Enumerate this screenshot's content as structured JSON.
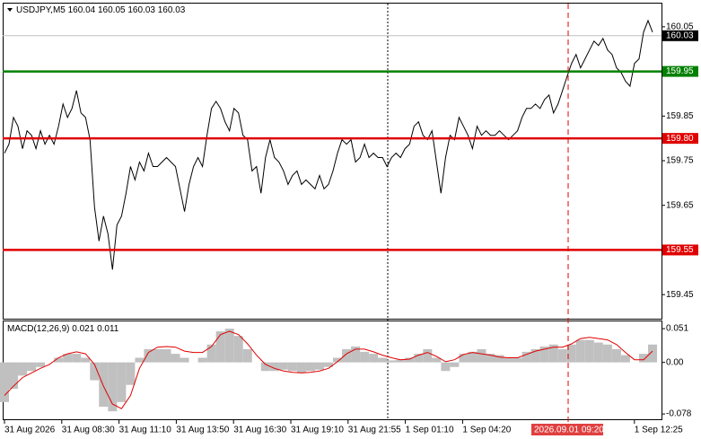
{
  "chart_data": [
    {
      "type": "line",
      "title": "USDJPY,M5",
      "ohlc": [
        160.04,
        160.05,
        160.03,
        160.03
      ],
      "color": "#000000",
      "values": [
        159.767,
        159.787,
        159.847,
        159.827,
        159.777,
        159.817,
        159.807,
        159.777,
        159.817,
        159.787,
        159.807,
        159.787,
        159.827,
        159.877,
        159.847,
        159.867,
        159.907,
        159.857,
        159.847,
        159.797,
        159.646,
        159.57,
        159.626,
        159.586,
        159.506,
        159.606,
        159.626,
        159.677,
        159.737,
        159.707,
        159.747,
        159.727,
        159.767,
        159.737,
        159.737,
        159.747,
        159.757,
        159.747,
        159.737,
        159.687,
        159.636,
        159.697,
        159.737,
        159.757,
        159.737,
        159.807,
        159.867,
        159.883,
        159.867,
        159.837,
        159.817,
        159.867,
        159.857,
        159.807,
        159.797,
        159.727,
        159.737,
        159.677,
        159.757,
        159.797,
        159.757,
        159.747,
        159.727,
        159.697,
        159.717,
        159.727,
        159.697,
        159.707,
        159.697,
        159.687,
        159.717,
        159.687,
        159.697,
        159.727,
        159.767,
        159.797,
        159.787,
        159.797,
        159.747,
        159.757,
        159.787,
        159.757,
        159.767,
        159.757,
        159.757,
        159.737,
        159.757,
        159.767,
        159.757,
        159.777,
        159.787,
        159.827,
        159.837,
        159.807,
        159.797,
        159.817,
        159.747,
        159.677,
        159.757,
        159.807,
        159.797,
        159.847,
        159.827,
        159.807,
        159.777,
        159.827,
        159.807,
        159.817,
        159.807,
        159.807,
        159.817,
        159.807,
        159.797,
        159.807,
        159.817,
        159.847,
        159.867,
        159.867,
        159.877,
        159.867,
        159.887,
        159.897,
        159.857,
        159.877,
        159.907,
        159.938,
        159.968,
        159.988,
        159.958,
        159.978,
        159.998,
        160.018,
        160.008,
        160.024,
        159.998,
        159.988,
        159.958,
        159.948,
        159.928,
        159.917,
        159.968,
        159.978,
        160.038,
        160.064,
        160.038
      ],
      "ylim": [
        159.396,
        160.102
      ],
      "yticks": [
        160.05,
        159.95,
        159.85,
        159.75,
        159.65,
        159.55,
        159.45
      ],
      "levels": [
        {
          "value": 159.95,
          "color": "#008000"
        },
        {
          "value": 159.8,
          "label": "159.80",
          "color": "#e00000"
        },
        {
          "value": 159.55,
          "color": "#e00000"
        }
      ],
      "last_price": 160.03
    },
    {
      "type": "macd",
      "title": "MACD(12,26,9)",
      "current": [
        0.021,
        0.011
      ],
      "color": "#c0c0c0",
      "signal_color": "#e00000",
      "values": [
        -0.06,
        -0.04,
        -0.02,
        -0.013,
        -0.007,
        0.0,
        0.007,
        0.013,
        0.013,
        0.007,
        -0.027,
        -0.067,
        -0.074,
        -0.06,
        -0.034,
        0.007,
        0.02,
        0.02,
        0.02,
        0.013,
        0.007,
        0.0,
        0.007,
        0.027,
        0.047,
        0.051,
        0.04,
        0.02,
        0.0,
        -0.013,
        -0.013,
        -0.011,
        -0.013,
        -0.016,
        -0.013,
        -0.011,
        -0.007,
        0.007,
        0.02,
        0.024,
        0.016,
        0.013,
        0.007,
        0.003,
        0.004,
        0.007,
        0.013,
        0.02,
        0.007,
        -0.013,
        -0.007,
        0.013,
        0.016,
        0.02,
        0.013,
        0.011,
        0.007,
        0.007,
        0.016,
        0.02,
        0.024,
        0.027,
        0.02,
        0.027,
        0.034,
        0.034,
        0.03,
        0.027,
        0.02,
        0.011,
        0.0,
        0.013,
        0.027
      ],
      "signal_values": [
        -0.05,
        -0.036,
        -0.023,
        -0.016,
        -0.009,
        -0.003,
        0.007,
        0.013,
        0.016,
        0.013,
        -0.003,
        -0.036,
        -0.063,
        -0.07,
        -0.05,
        -0.009,
        0.015,
        0.023,
        0.024,
        0.023,
        0.017,
        0.015,
        0.015,
        0.024,
        0.042,
        0.047,
        0.042,
        0.028,
        0.011,
        -0.003,
        -0.009,
        -0.013,
        -0.015,
        -0.016,
        -0.015,
        -0.013,
        -0.009,
        0.001,
        0.013,
        0.02,
        0.02,
        0.016,
        0.011,
        0.007,
        0.004,
        0.005,
        0.011,
        0.015,
        0.009,
        0.001,
        0.004,
        0.012,
        0.015,
        0.013,
        0.011,
        0.008,
        0.007,
        0.007,
        0.012,
        0.017,
        0.02,
        0.023,
        0.023,
        0.028,
        0.036,
        0.038,
        0.036,
        0.034,
        0.027,
        0.015,
        0.004,
        0.004,
        0.017
      ],
      "ylim": [
        -0.086,
        0.062
      ],
      "yticks": [
        0.051,
        {
          "value": 0,
          "label": "0.00"
        },
        -0.078
      ]
    },
    {
      "type": "time-axis",
      "labels": [
        "31 Aug 2026",
        "31 Aug 08:30",
        "31 Aug 11:10",
        "31 Aug 13:50",
        "31 Aug 16:30",
        "31 Aug 19:10",
        "31 Aug 21:55",
        "1 Sep 01:10",
        "1 Sep 04:20",
        null,
        null,
        "1 Sep 12:25"
      ],
      "cursor_label": "2026.09.01 09:20"
    }
  ]
}
